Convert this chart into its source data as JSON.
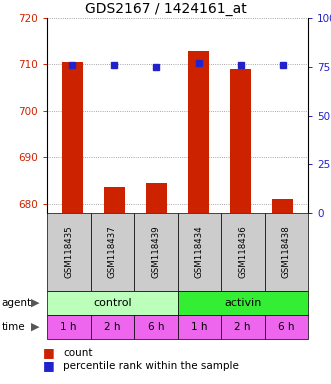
{
  "title": "GDS2167 / 1424161_at",
  "samples": [
    "GSM118435",
    "GSM118437",
    "GSM118439",
    "GSM118434",
    "GSM118436",
    "GSM118438"
  ],
  "count_values": [
    710.5,
    683.5,
    684.5,
    713.0,
    709.0,
    681.0
  ],
  "percentile_values": [
    76,
    76,
    75,
    77,
    76,
    76
  ],
  "ylim_left": [
    678,
    720
  ],
  "ylim_right": [
    0,
    100
  ],
  "yticks_left": [
    680,
    690,
    700,
    710,
    720
  ],
  "yticks_right": [
    0,
    25,
    50,
    75,
    100
  ],
  "bar_color": "#cc2200",
  "dot_color": "#2222cc",
  "agent_control_color": "#bbffbb",
  "agent_activin_color": "#33ee33",
  "time_color": "#ee66ee",
  "grid_color": "#888888",
  "sample_bg_color": "#cccccc",
  "title_fontsize": 10,
  "axis_label_color_left": "#cc2200",
  "axis_label_color_right": "#2222cc",
  "time_labels": [
    "1 h",
    "2 h",
    "6 h",
    "1 h",
    "2 h",
    "6 h"
  ]
}
